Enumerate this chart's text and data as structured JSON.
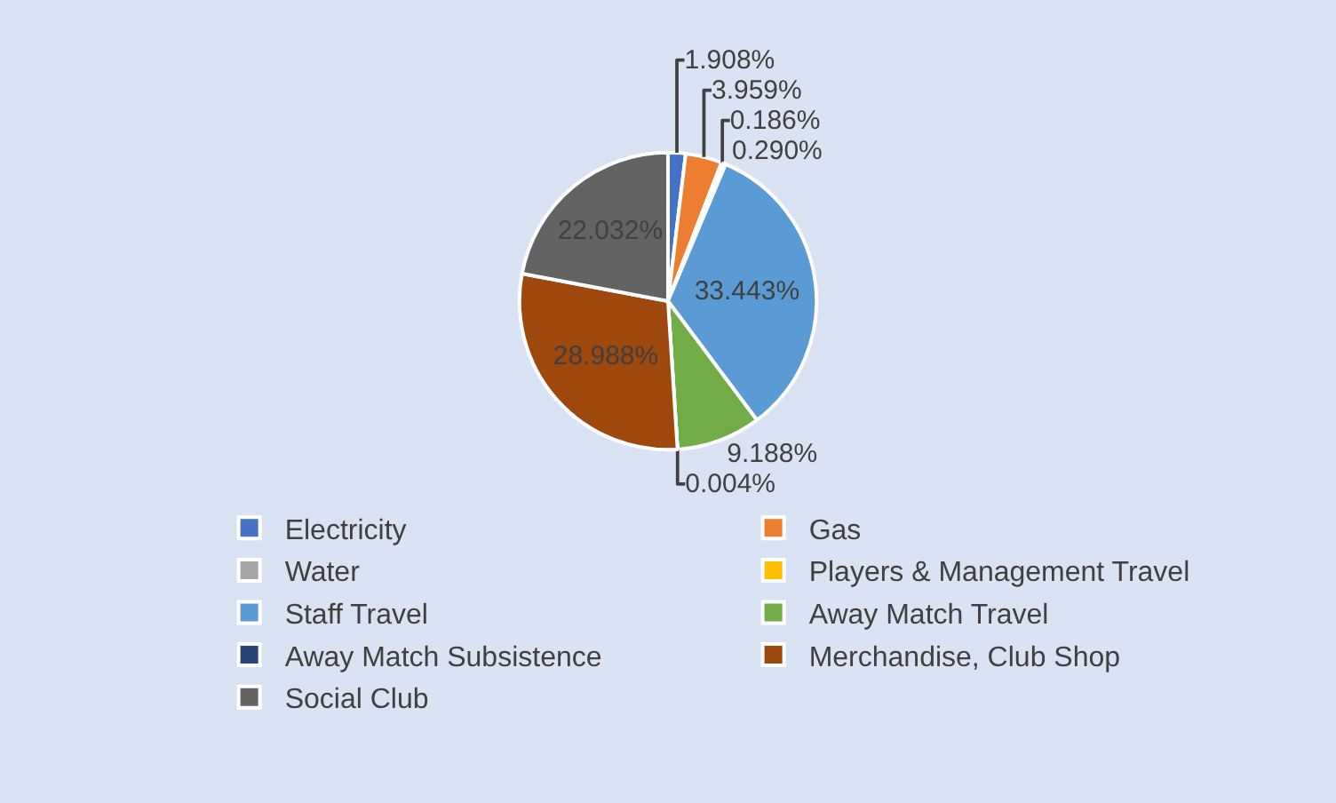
{
  "chart_data": {
    "type": "pie",
    "categories": [
      "Electricity",
      "Gas",
      "Water",
      "Players & Management Travel",
      "Staff Travel",
      "Away Match Travel",
      "Away Match Subsistence",
      "Merchandise, Club Shop",
      "Social Club"
    ],
    "values": [
      1.908,
      3.959,
      0.186,
      0.29,
      33.443,
      9.188,
      0.004,
      28.988,
      22.032
    ],
    "colors": [
      "#4472c4",
      "#ed7d31",
      "#a5a5a5",
      "#ffc000",
      "#5b9bd5",
      "#70ad47",
      "#264478",
      "#9e480e",
      "#636363"
    ],
    "value_labels": [
      "1.908%",
      "3.959%",
      "0.186%",
      "0.290%",
      "33.443%",
      "9.188%",
      "0.004%",
      "28.988%",
      "22.032%"
    ],
    "legend": "bottom"
  }
}
